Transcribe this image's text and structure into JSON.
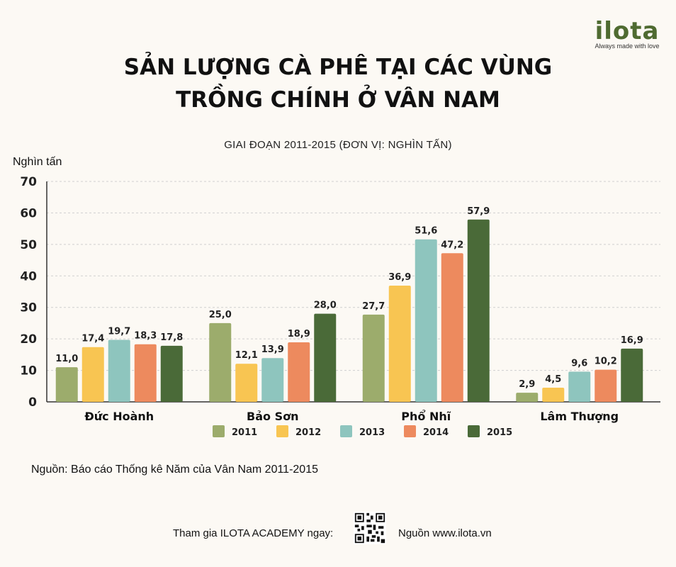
{
  "brand": {
    "name": "ilota",
    "tagline": "Always made with love",
    "color": "#4f6b31"
  },
  "title_line1": "SẢN LƯỢNG CÀ PHÊ TẠI CÁC VÙNG",
  "title_line2": "TRỒNG CHÍNH Ở VÂN NAM",
  "source": "Nguồn: Báo cáo Thống kê Năm của Vân Nam 2011-2015",
  "footer": {
    "join_text": "Tham gia ILOTA ACADEMY ngay:",
    "source_text": "Nguồn www.ilota.vn"
  },
  "chart_data": {
    "type": "bar",
    "title": "",
    "subtitle": "GIAI ĐOẠN 2011-2015 (ĐƠN VỊ: NGHÌN TẤN)",
    "ylabel": "Nghìn tấn",
    "xlabel": "",
    "ylim": [
      0,
      70
    ],
    "yticks": [
      0,
      10,
      20,
      30,
      40,
      50,
      60,
      70
    ],
    "grid": true,
    "legend_position": "bottom",
    "categories": [
      "Đức Hoành",
      "Bảo Sơn",
      "Phổ Nhĩ",
      "Lâm Thượng"
    ],
    "series": [
      {
        "name": "2011",
        "color": "#9cac6c",
        "values": [
          11.0,
          25.0,
          27.7,
          2.9
        ],
        "labels": [
          "11,0",
          "25,0",
          "27,7",
          "2,9"
        ]
      },
      {
        "name": "2012",
        "color": "#f8c552",
        "values": [
          17.4,
          12.1,
          36.9,
          4.5
        ],
        "labels": [
          "17,4",
          "12,1",
          "36,9",
          "4,5"
        ]
      },
      {
        "name": "2013",
        "color": "#8ec5be",
        "values": [
          19.7,
          13.9,
          51.6,
          9.6
        ],
        "labels": [
          "19,7",
          "13,9",
          "51,6",
          "9,6"
        ]
      },
      {
        "name": "2014",
        "color": "#ed8a5e",
        "values": [
          18.3,
          18.9,
          47.2,
          10.2
        ],
        "labels": [
          "18,3",
          "18,9",
          "47,2",
          "10,2"
        ]
      },
      {
        "name": "2015",
        "color": "#4a6a38",
        "values": [
          17.8,
          28.0,
          57.9,
          16.9
        ],
        "labels": [
          "17,8",
          "28,0",
          "57,9",
          "16,9"
        ]
      }
    ]
  }
}
